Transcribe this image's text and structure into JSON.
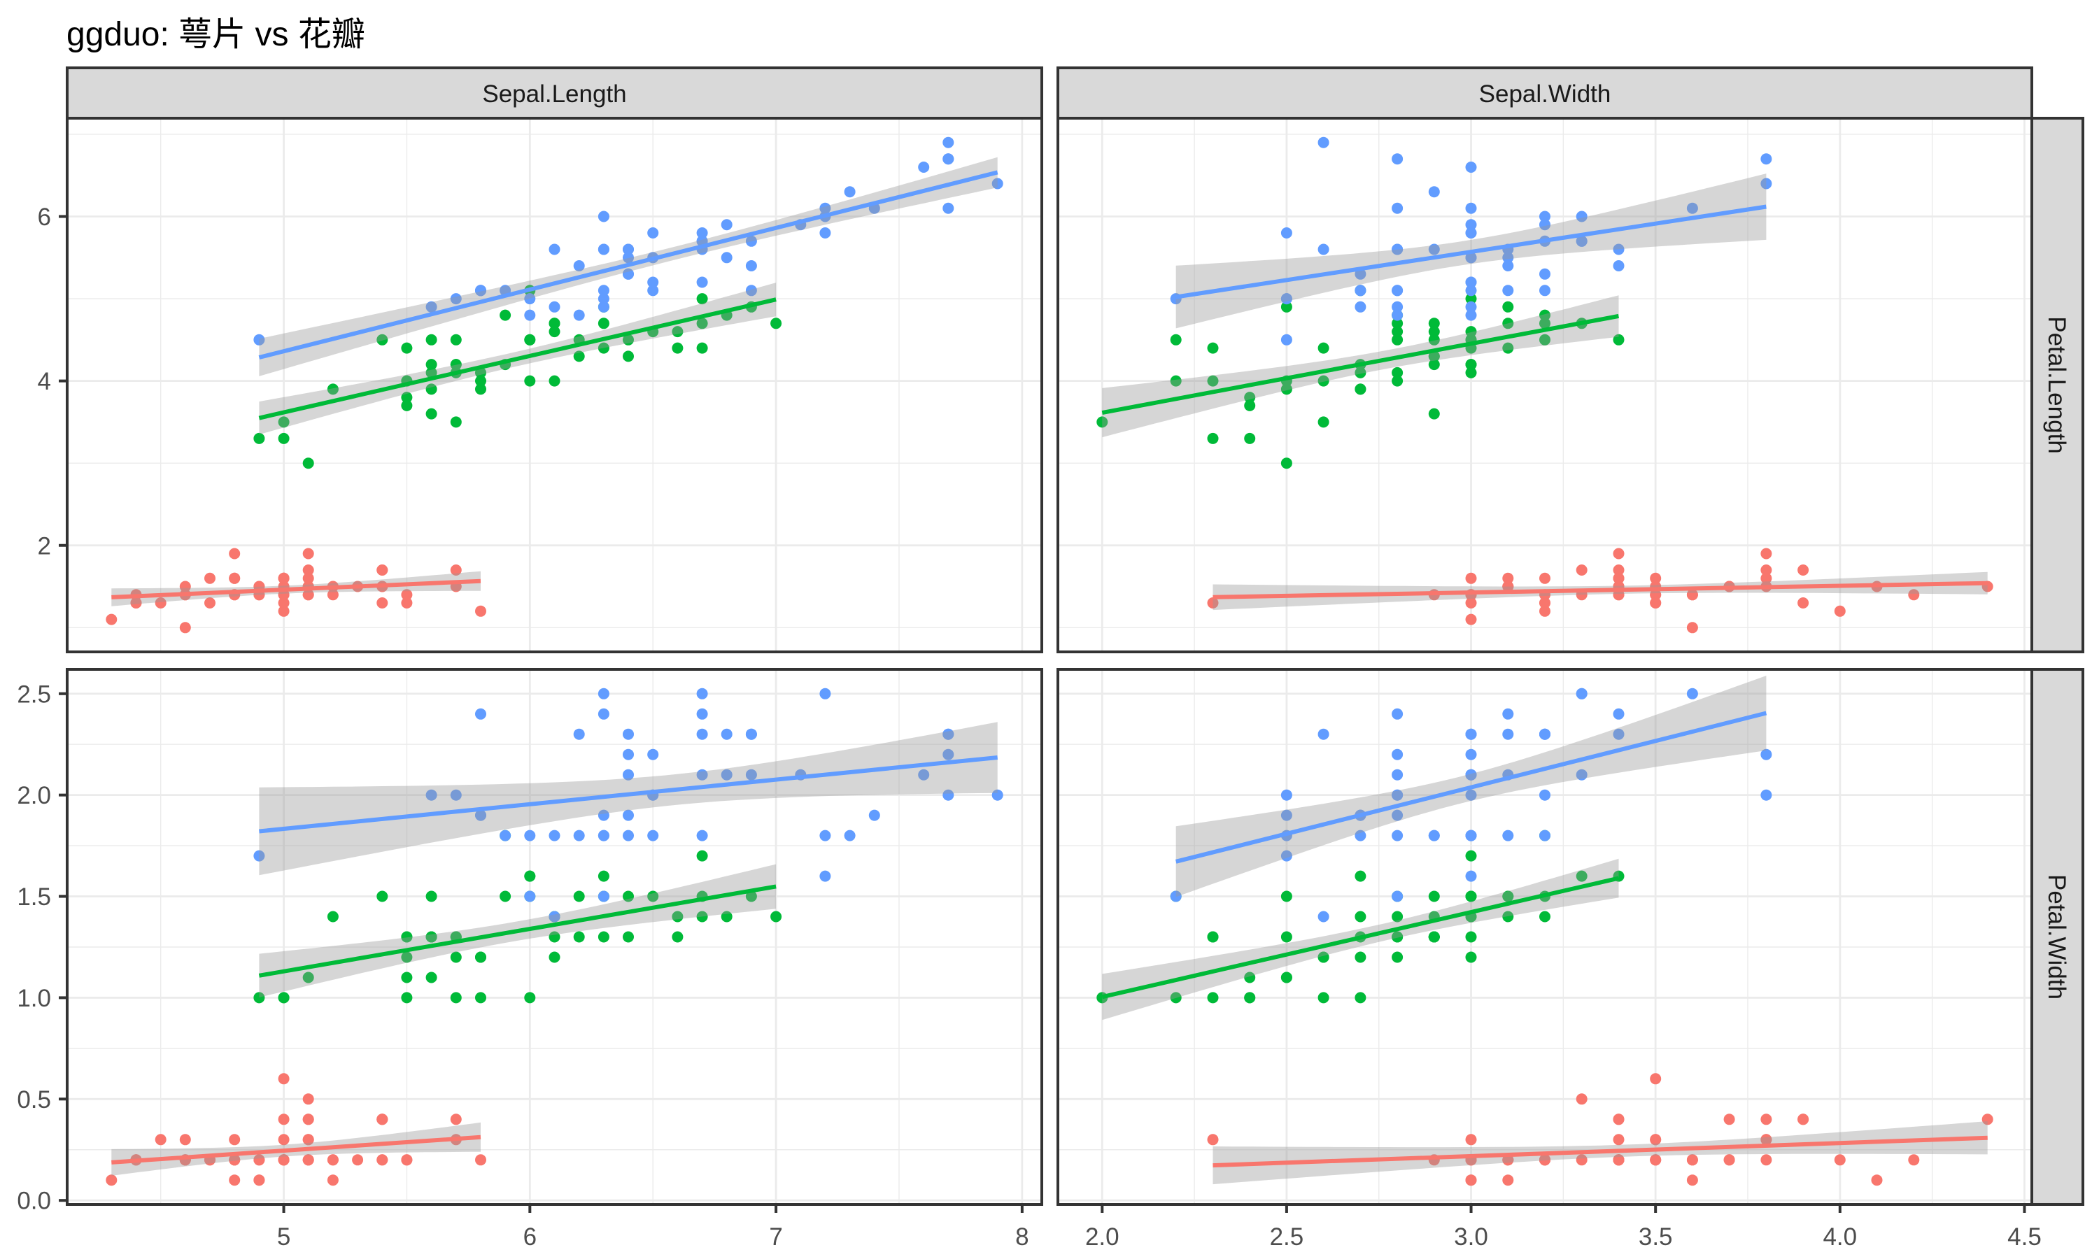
{
  "chart_data": {
    "type": "scatter",
    "title": "ggduo: 萼片 vs 花瓣",
    "fields": [
      "Sepal.Length",
      "Sepal.Width",
      "Petal.Length",
      "Petal.Width"
    ],
    "x_vars": [
      0,
      1
    ],
    "y_vars": [
      2,
      3
    ],
    "grid": true,
    "legend": "none",
    "axes": {
      "x": [
        {
          "lim": [
            4.12,
            8.08
          ],
          "ticks": [
            5,
            6,
            7,
            8
          ],
          "tick_labels": [
            "5",
            "6",
            "7",
            "8"
          ]
        },
        {
          "lim": [
            1.88,
            4.52
          ],
          "ticks": [
            2.0,
            2.5,
            3.0,
            3.5,
            4.0,
            4.5
          ],
          "tick_labels": [
            "2.0",
            "2.5",
            "3.0",
            "3.5",
            "4.0",
            "4.5"
          ]
        }
      ],
      "y": [
        {
          "lim": [
            0.705,
            7.195
          ],
          "ticks": [
            2,
            4,
            6
          ],
          "tick_labels": [
            "2",
            "4",
            "6"
          ]
        },
        {
          "lim": [
            -0.02,
            2.62
          ],
          "ticks": [
            0.0,
            0.5,
            1.0,
            1.5,
            2.0,
            2.5
          ],
          "tick_labels": [
            "0.0",
            "0.5",
            "1.0",
            "1.5",
            "2.0",
            "2.5"
          ]
        }
      ]
    },
    "smooth": {
      "method": "lm",
      "se": true,
      "level": 0.95,
      "band_color": "#999999",
      "band_opacity": 0.4
    },
    "series": [
      {
        "color": "#F8766D",
        "points": [
          [
            5.1,
            3.5,
            1.4,
            0.2
          ],
          [
            4.9,
            3.0,
            1.4,
            0.2
          ],
          [
            4.7,
            3.2,
            1.3,
            0.2
          ],
          [
            4.6,
            3.1,
            1.5,
            0.2
          ],
          [
            5.0,
            3.6,
            1.4,
            0.2
          ],
          [
            5.4,
            3.9,
            1.7,
            0.4
          ],
          [
            4.6,
            3.4,
            1.4,
            0.3
          ],
          [
            5.0,
            3.4,
            1.5,
            0.2
          ],
          [
            4.4,
            2.9,
            1.4,
            0.2
          ],
          [
            4.9,
            3.1,
            1.5,
            0.1
          ],
          [
            5.4,
            3.7,
            1.5,
            0.2
          ],
          [
            4.8,
            3.4,
            1.6,
            0.2
          ],
          [
            4.8,
            3.0,
            1.4,
            0.1
          ],
          [
            4.3,
            3.0,
            1.1,
            0.1
          ],
          [
            5.8,
            4.0,
            1.2,
            0.2
          ],
          [
            5.7,
            4.4,
            1.5,
            0.4
          ],
          [
            5.4,
            3.9,
            1.3,
            0.4
          ],
          [
            5.1,
            3.5,
            1.4,
            0.3
          ],
          [
            5.7,
            3.8,
            1.7,
            0.3
          ],
          [
            5.1,
            3.8,
            1.5,
            0.3
          ],
          [
            5.4,
            3.4,
            1.7,
            0.2
          ],
          [
            5.1,
            3.7,
            1.5,
            0.4
          ],
          [
            4.6,
            3.6,
            1.0,
            0.2
          ],
          [
            5.1,
            3.3,
            1.7,
            0.5
          ],
          [
            4.8,
            3.4,
            1.9,
            0.2
          ],
          [
            5.0,
            3.0,
            1.6,
            0.2
          ],
          [
            5.0,
            3.4,
            1.6,
            0.4
          ],
          [
            5.2,
            3.5,
            1.5,
            0.2
          ],
          [
            5.2,
            3.4,
            1.4,
            0.2
          ],
          [
            4.7,
            3.2,
            1.6,
            0.2
          ],
          [
            4.8,
            3.1,
            1.6,
            0.2
          ],
          [
            5.4,
            3.4,
            1.5,
            0.4
          ],
          [
            5.2,
            4.1,
            1.5,
            0.1
          ],
          [
            5.5,
            4.2,
            1.4,
            0.2
          ],
          [
            4.9,
            3.1,
            1.5,
            0.2
          ],
          [
            5.0,
            3.2,
            1.2,
            0.2
          ],
          [
            5.5,
            3.5,
            1.3,
            0.2
          ],
          [
            4.9,
            3.6,
            1.4,
            0.1
          ],
          [
            4.4,
            3.0,
            1.3,
            0.2
          ],
          [
            5.1,
            3.4,
            1.5,
            0.2
          ],
          [
            5.0,
            3.5,
            1.3,
            0.3
          ],
          [
            4.5,
            2.3,
            1.3,
            0.3
          ],
          [
            4.4,
            3.2,
            1.3,
            0.2
          ],
          [
            5.0,
            3.5,
            1.6,
            0.6
          ],
          [
            5.1,
            3.8,
            1.9,
            0.4
          ],
          [
            4.8,
            3.0,
            1.4,
            0.3
          ],
          [
            5.1,
            3.8,
            1.6,
            0.2
          ],
          [
            4.6,
            3.2,
            1.4,
            0.2
          ],
          [
            5.3,
            3.7,
            1.5,
            0.2
          ],
          [
            5.0,
            3.3,
            1.4,
            0.2
          ]
        ]
      },
      {
        "color": "#00BA38",
        "points": [
          [
            7.0,
            3.2,
            4.7,
            1.4
          ],
          [
            6.4,
            3.2,
            4.5,
            1.5
          ],
          [
            6.9,
            3.1,
            4.9,
            1.5
          ],
          [
            5.5,
            2.3,
            4.0,
            1.3
          ],
          [
            6.5,
            2.8,
            4.6,
            1.5
          ],
          [
            5.7,
            2.8,
            4.5,
            1.3
          ],
          [
            6.3,
            3.3,
            4.7,
            1.6
          ],
          [
            4.9,
            2.4,
            3.3,
            1.0
          ],
          [
            6.6,
            2.9,
            4.6,
            1.3
          ],
          [
            5.2,
            2.7,
            3.9,
            1.4
          ],
          [
            5.0,
            2.0,
            3.5,
            1.0
          ],
          [
            5.9,
            3.0,
            4.2,
            1.5
          ],
          [
            6.0,
            2.2,
            4.0,
            1.0
          ],
          [
            6.1,
            2.9,
            4.7,
            1.4
          ],
          [
            5.6,
            2.9,
            3.6,
            1.3
          ],
          [
            6.7,
            3.1,
            4.4,
            1.4
          ],
          [
            5.6,
            3.0,
            4.5,
            1.5
          ],
          [
            5.8,
            2.7,
            4.1,
            1.0
          ],
          [
            6.2,
            2.2,
            4.5,
            1.5
          ],
          [
            5.6,
            2.5,
            3.9,
            1.1
          ],
          [
            5.9,
            3.2,
            4.8,
            1.8
          ],
          [
            6.1,
            2.8,
            4.0,
            1.3
          ],
          [
            6.3,
            2.5,
            4.9,
            1.5
          ],
          [
            6.1,
            2.8,
            4.7,
            1.2
          ],
          [
            6.4,
            2.9,
            4.3,
            1.3
          ],
          [
            6.6,
            3.0,
            4.4,
            1.4
          ],
          [
            6.8,
            2.8,
            4.8,
            1.4
          ],
          [
            6.7,
            3.0,
            5.0,
            1.7
          ],
          [
            6.0,
            2.9,
            4.5,
            1.5
          ],
          [
            5.7,
            2.6,
            3.5,
            1.0
          ],
          [
            5.5,
            2.4,
            3.8,
            1.1
          ],
          [
            5.5,
            2.4,
            3.7,
            1.0
          ],
          [
            5.8,
            2.7,
            3.9,
            1.2
          ],
          [
            6.0,
            2.7,
            5.1,
            1.6
          ],
          [
            5.4,
            3.0,
            4.5,
            1.5
          ],
          [
            6.0,
            3.4,
            4.5,
            1.6
          ],
          [
            6.7,
            3.1,
            4.7,
            1.5
          ],
          [
            6.3,
            2.3,
            4.4,
            1.3
          ],
          [
            5.6,
            3.0,
            4.1,
            1.3
          ],
          [
            5.5,
            2.5,
            4.0,
            1.3
          ],
          [
            5.5,
            2.6,
            4.4,
            1.2
          ],
          [
            6.1,
            3.0,
            4.6,
            1.4
          ],
          [
            5.8,
            2.6,
            4.0,
            1.2
          ],
          [
            5.0,
            2.3,
            3.3,
            1.0
          ],
          [
            5.6,
            2.7,
            4.2,
            1.3
          ],
          [
            5.7,
            3.0,
            4.2,
            1.2
          ],
          [
            5.7,
            2.9,
            4.2,
            1.3
          ],
          [
            6.2,
            2.9,
            4.3,
            1.3
          ],
          [
            5.1,
            2.5,
            3.0,
            1.1
          ],
          [
            5.7,
            2.8,
            4.1,
            1.3
          ]
        ]
      },
      {
        "color": "#619CFF",
        "points": [
          [
            6.3,
            3.3,
            6.0,
            2.5
          ],
          [
            5.8,
            2.7,
            5.1,
            1.9
          ],
          [
            7.1,
            3.0,
            5.9,
            2.1
          ],
          [
            6.3,
            2.9,
            5.6,
            1.8
          ],
          [
            6.5,
            3.0,
            5.8,
            2.2
          ],
          [
            7.6,
            3.0,
            6.6,
            2.1
          ],
          [
            4.9,
            2.5,
            4.5,
            1.7
          ],
          [
            7.3,
            2.9,
            6.3,
            1.8
          ],
          [
            6.7,
            2.5,
            5.8,
            1.8
          ],
          [
            7.2,
            3.6,
            6.1,
            2.5
          ],
          [
            6.5,
            3.2,
            5.1,
            2.0
          ],
          [
            6.4,
            2.7,
            5.3,
            1.9
          ],
          [
            6.8,
            3.0,
            5.5,
            2.1
          ],
          [
            5.7,
            2.5,
            5.0,
            2.0
          ],
          [
            5.8,
            2.8,
            5.1,
            2.4
          ],
          [
            6.4,
            3.2,
            5.3,
            2.3
          ],
          [
            6.5,
            3.0,
            5.5,
            1.8
          ],
          [
            7.7,
            3.8,
            6.7,
            2.2
          ],
          [
            7.7,
            2.6,
            6.9,
            2.3
          ],
          [
            6.0,
            2.2,
            5.0,
            1.5
          ],
          [
            6.9,
            3.2,
            5.7,
            2.3
          ],
          [
            5.6,
            2.8,
            4.9,
            2.0
          ],
          [
            7.7,
            2.8,
            6.7,
            2.0
          ],
          [
            6.3,
            2.7,
            4.9,
            1.8
          ],
          [
            6.7,
            3.3,
            5.7,
            2.1
          ],
          [
            7.2,
            3.2,
            6.0,
            1.8
          ],
          [
            6.2,
            2.8,
            4.8,
            1.8
          ],
          [
            6.1,
            3.0,
            4.9,
            1.8
          ],
          [
            6.4,
            2.8,
            5.6,
            2.1
          ],
          [
            7.2,
            3.0,
            5.8,
            1.6
          ],
          [
            7.4,
            2.8,
            6.1,
            1.9
          ],
          [
            7.9,
            3.8,
            6.4,
            2.0
          ],
          [
            6.4,
            2.8,
            5.6,
            2.2
          ],
          [
            6.3,
            2.8,
            5.1,
            1.5
          ],
          [
            6.1,
            2.6,
            5.6,
            1.4
          ],
          [
            7.7,
            3.0,
            6.1,
            2.3
          ],
          [
            6.3,
            3.4,
            5.6,
            2.4
          ],
          [
            6.4,
            3.1,
            5.5,
            1.8
          ],
          [
            6.0,
            3.0,
            4.8,
            1.8
          ],
          [
            6.9,
            3.1,
            5.4,
            2.1
          ],
          [
            6.7,
            3.1,
            5.6,
            2.4
          ],
          [
            6.9,
            3.1,
            5.1,
            2.3
          ],
          [
            5.8,
            2.7,
            5.1,
            1.9
          ],
          [
            6.8,
            3.2,
            5.9,
            2.3
          ],
          [
            6.7,
            3.3,
            5.7,
            2.5
          ],
          [
            6.7,
            3.0,
            5.2,
            2.3
          ],
          [
            6.3,
            2.5,
            5.0,
            1.9
          ],
          [
            6.5,
            3.0,
            5.2,
            2.0
          ],
          [
            6.2,
            3.4,
            5.4,
            2.3
          ],
          [
            5.9,
            3.0,
            5.1,
            1.8
          ]
        ]
      }
    ]
  }
}
